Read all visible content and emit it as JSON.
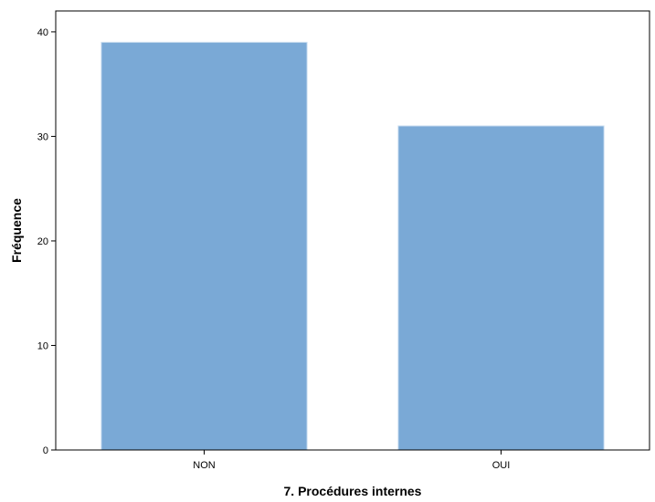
{
  "chart_data": {
    "type": "bar",
    "categories": [
      "NON",
      "OUI"
    ],
    "values": [
      39,
      31
    ],
    "title": "",
    "xlabel": "7. Procédures internes",
    "ylabel": "Fréquence",
    "ylim": [
      0,
      42
    ],
    "yticks": [
      0,
      10,
      20,
      30,
      40
    ],
    "grid": false,
    "bar_color": "#7aa9d6",
    "bar_edge_color": "#c8dcef"
  }
}
